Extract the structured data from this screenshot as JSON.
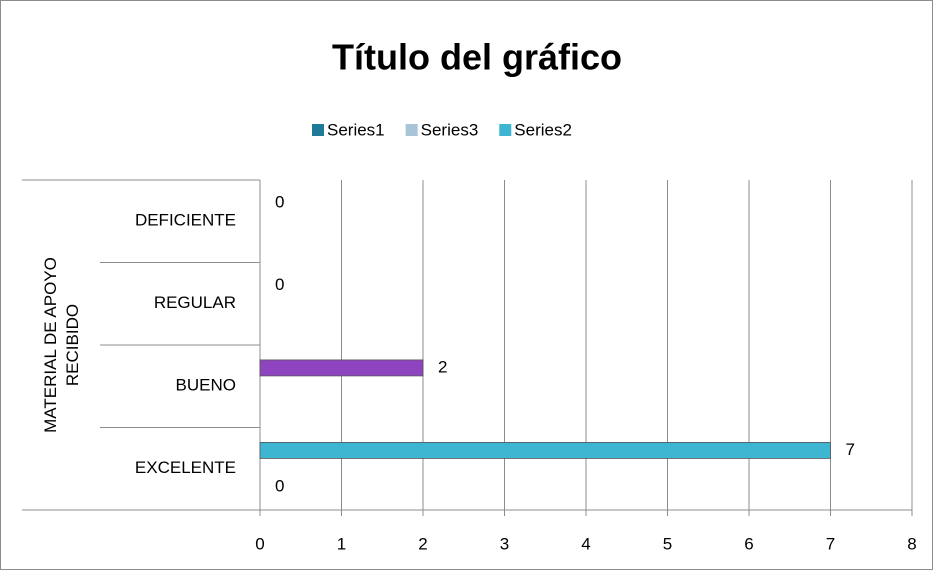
{
  "chart_data": {
    "type": "bar",
    "orientation": "horizontal",
    "title": "Título del gráfico",
    "category_group": "MATERIAL DE APOYO RECIBIDO",
    "categories": [
      "EXCELENTE",
      "BUENO",
      "REGULAR",
      "DEFICIENTE"
    ],
    "series": [
      {
        "name": "Series1",
        "color": "#1f7a99",
        "values": [
          0,
          null,
          null,
          null
        ]
      },
      {
        "name": "Series3",
        "color": "#a9c4d6",
        "values": [
          null,
          null,
          null,
          null
        ]
      },
      {
        "name": "Series2",
        "color": "#3fb6d1",
        "values": [
          7,
          2,
          0,
          0
        ],
        "point_colors": [
          "#3fb6d1",
          "#8e44bf",
          "#3fb6d1",
          "#3fb6d1"
        ]
      }
    ],
    "xlim": [
      0,
      8
    ],
    "xticks": [
      0,
      1,
      2,
      3,
      4,
      5,
      6,
      7,
      8
    ],
    "grid": true,
    "legend": "top"
  }
}
